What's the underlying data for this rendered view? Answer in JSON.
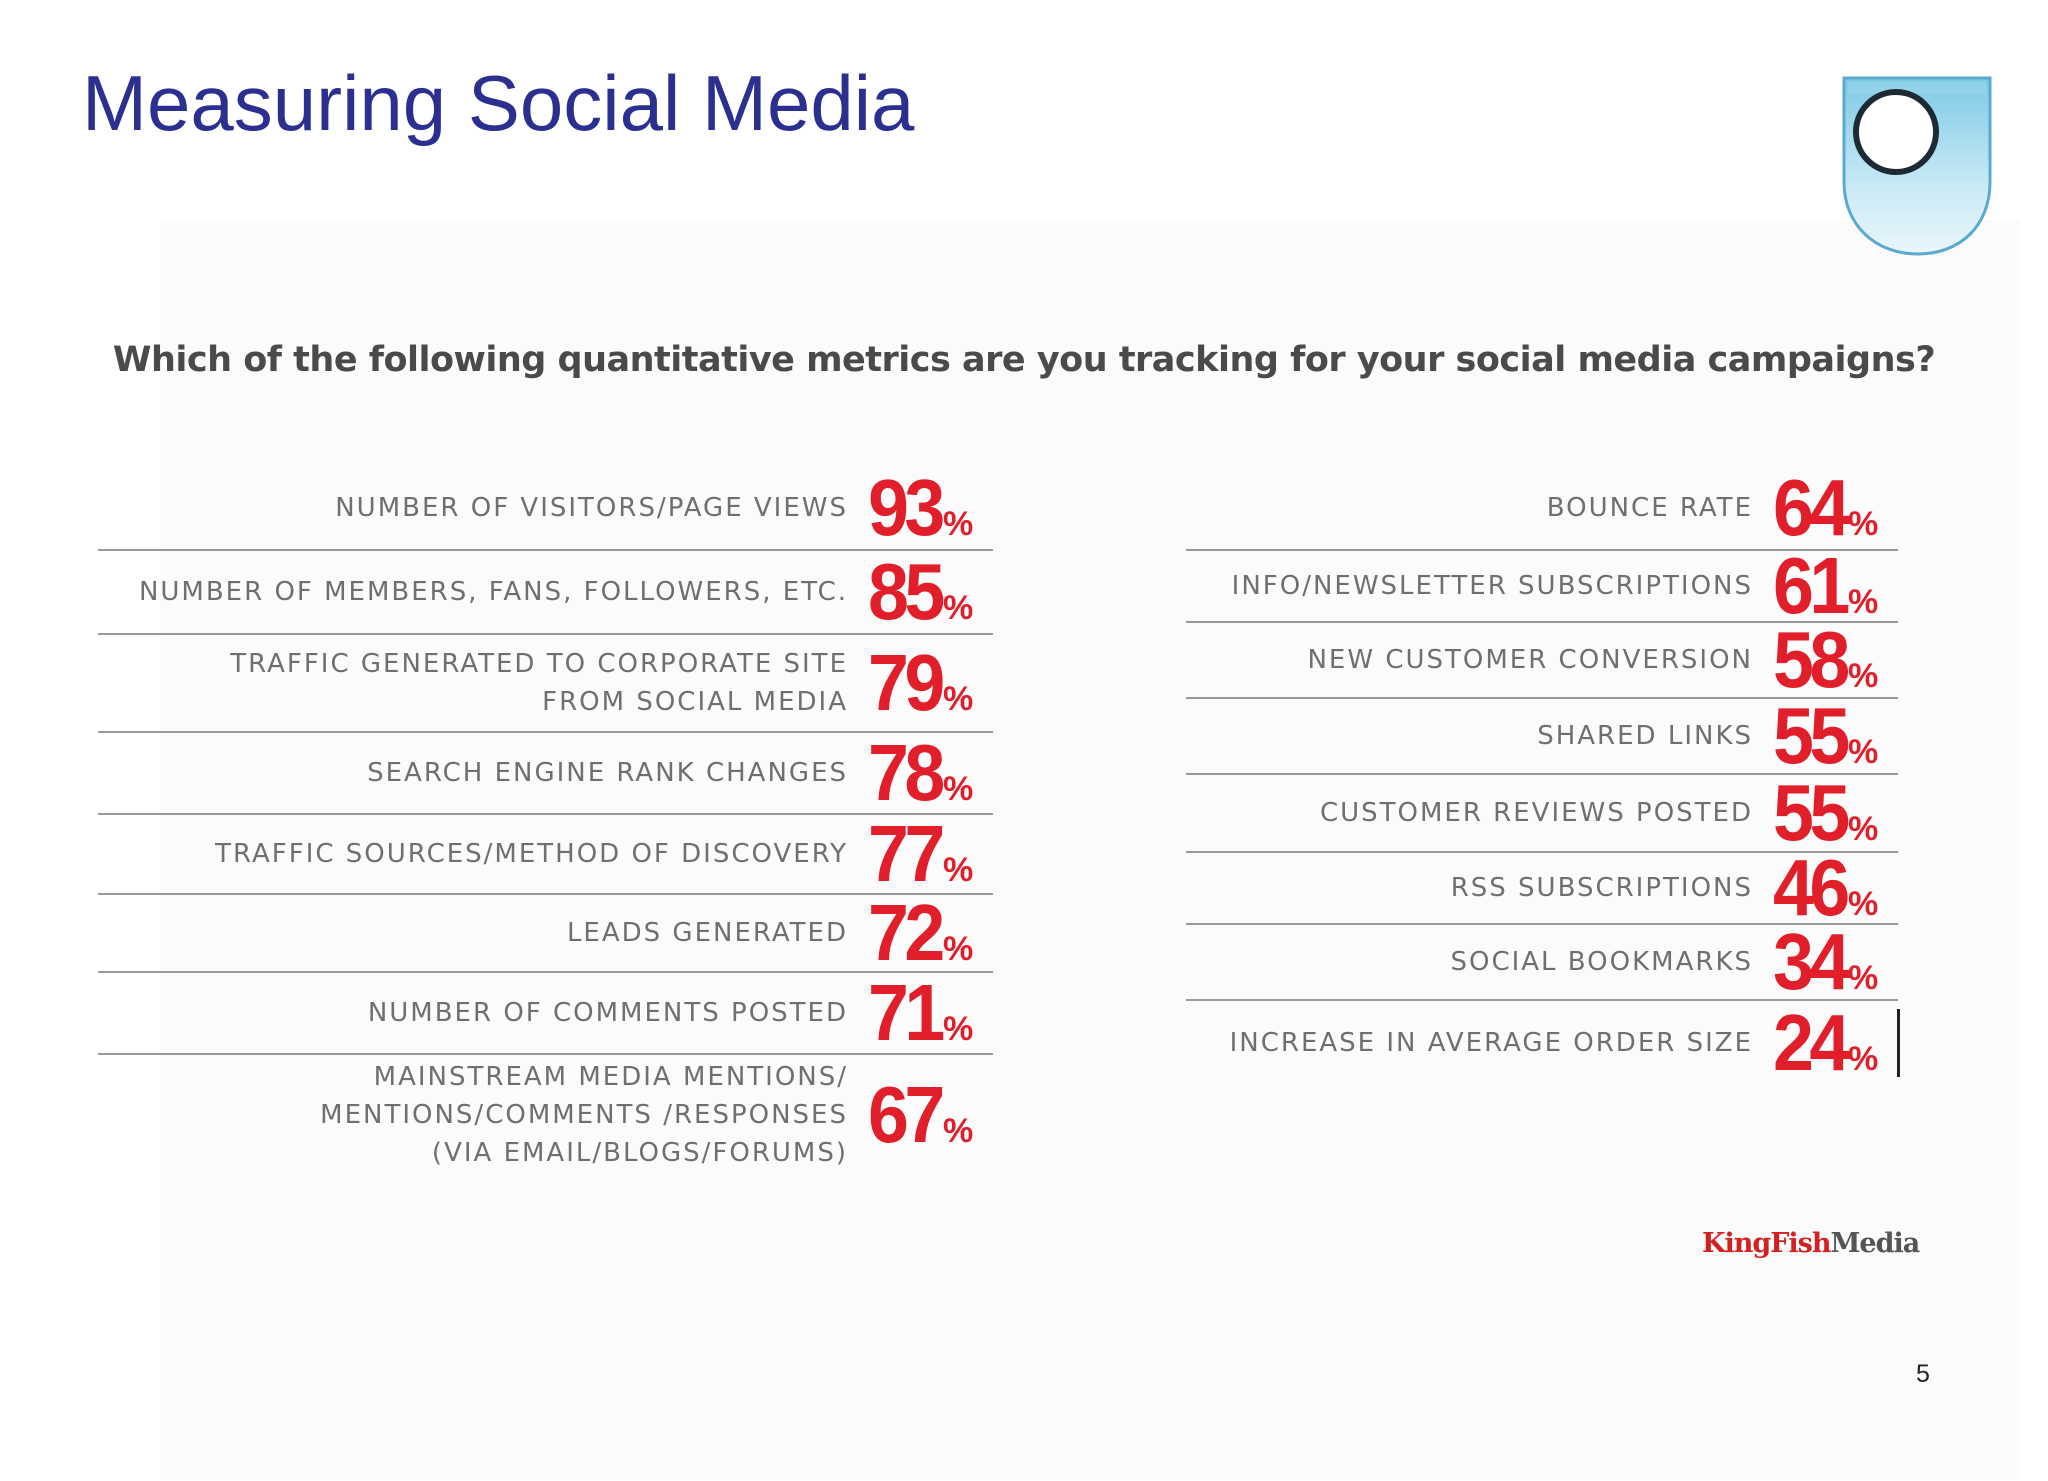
{
  "slide": {
    "title": "Measuring Social Media",
    "page_number": "5"
  },
  "brand": {
    "part1": "KingFish",
    "part2": "Media"
  },
  "chart_data": {
    "type": "table",
    "title": "Which of the following quantitative metrics are you tracking for your social media campaigns?",
    "unit_suffix": "%",
    "columns": [
      {
        "rows": [
          {
            "label": [
              "NUMBER OF VISITORS/PAGE VIEWS"
            ],
            "value": 93
          },
          {
            "label": [
              "NUMBER OF MEMBERS, FANS, FOLLOWERS, ETC."
            ],
            "value": 85
          },
          {
            "label": [
              "TRAFFIC GENERATED TO CORPORATE SITE",
              "FROM SOCIAL MEDIA"
            ],
            "value": 79
          },
          {
            "label": [
              "SEARCH ENGINE RANK CHANGES"
            ],
            "value": 78
          },
          {
            "label": [
              "TRAFFIC SOURCES/METHOD OF DISCOVERY"
            ],
            "value": 77
          },
          {
            "label": [
              "LEADS GENERATED"
            ],
            "value": 72
          },
          {
            "label": [
              "NUMBER OF COMMENTS POSTED"
            ],
            "value": 71
          },
          {
            "label": [
              "MAINSTREAM MEDIA MENTIONS/",
              "MENTIONS/COMMENTS /RESPONSES",
              "(VIA EMAIL/BLOGS/FORUMS)"
            ],
            "value": 67
          }
        ]
      },
      {
        "rows": [
          {
            "label": [
              "BOUNCE RATE"
            ],
            "value": 64
          },
          {
            "label": [
              "INFO/NEWSLETTER SUBSCRIPTIONS"
            ],
            "value": 61
          },
          {
            "label": [
              "NEW CUSTOMER CONVERSION"
            ],
            "value": 58
          },
          {
            "label": [
              "SHARED LINKS"
            ],
            "value": 55
          },
          {
            "label": [
              "CUSTOMER REVIEWS POSTED"
            ],
            "value": 55
          },
          {
            "label": [
              "RSS SUBSCRIPTIONS"
            ],
            "value": 46
          },
          {
            "label": [
              "SOCIAL BOOKMARKS"
            ],
            "value": 34
          },
          {
            "label": [
              "INCREASE IN AVERAGE ORDER SIZE"
            ],
            "value": 24
          }
        ]
      }
    ]
  },
  "colors": {
    "title": "#2b2f8f",
    "value": "#e11f2b",
    "label": "#6f6f6f",
    "rule": "#9a9a9a"
  }
}
